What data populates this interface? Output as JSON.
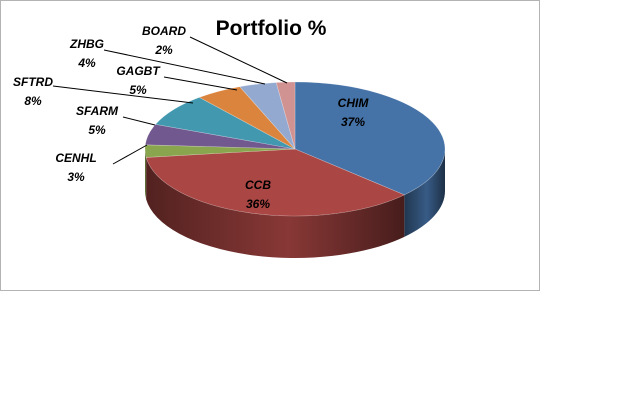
{
  "chart_data": {
    "type": "pie",
    "title": "Portfolio %",
    "slices": [
      {
        "label": "CHIM",
        "value": 37,
        "display": "37%",
        "color": "#4572a7"
      },
      {
        "label": "CCB",
        "value": 36,
        "display": "36%",
        "color": "#aa4643"
      },
      {
        "label": "CENHL",
        "value": 3,
        "display": "3%",
        "color": "#89a54e"
      },
      {
        "label": "SFARM",
        "value": 5,
        "display": "5%",
        "color": "#71588f"
      },
      {
        "label": "SFTRD",
        "value": 8,
        "display": "8%",
        "color": "#4198af"
      },
      {
        "label": "GAGBT",
        "value": 5,
        "display": "5%",
        "color": "#db843d"
      },
      {
        "label": "ZHBG",
        "value": 4,
        "display": "4%",
        "color": "#93a9cf"
      },
      {
        "label": "BOARD",
        "value": 2,
        "display": "2%",
        "color": "#d19392"
      }
    ],
    "legend": "none",
    "style": "3d"
  }
}
